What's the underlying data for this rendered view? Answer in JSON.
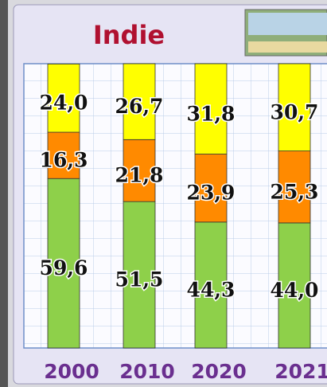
{
  "chart_data": {
    "type": "stacked-bar",
    "title": "Indie",
    "categories": [
      "2000",
      "2010",
      "2020",
      "2021"
    ],
    "series": [
      {
        "color": "#8ed04a",
        "values": [
          59.6,
          51.5,
          44.3,
          44.0
        ],
        "value_labels": [
          "59,6",
          "51,5",
          "44,3",
          "44,0"
        ]
      },
      {
        "color": "#ff8a00",
        "values": [
          16.3,
          21.8,
          23.9,
          25.3
        ],
        "value_labels": [
          "16,3",
          "21,8",
          "23,9",
          "25,3"
        ]
      },
      {
        "color": "#ffff00",
        "values": [
          24.0,
          26.7,
          31.8,
          30.7
        ],
        "value_labels": [
          "24,0",
          "26,7",
          "31,8",
          "30,7"
        ]
      }
    ],
    "ylim": [
      0,
      100
    ]
  }
}
